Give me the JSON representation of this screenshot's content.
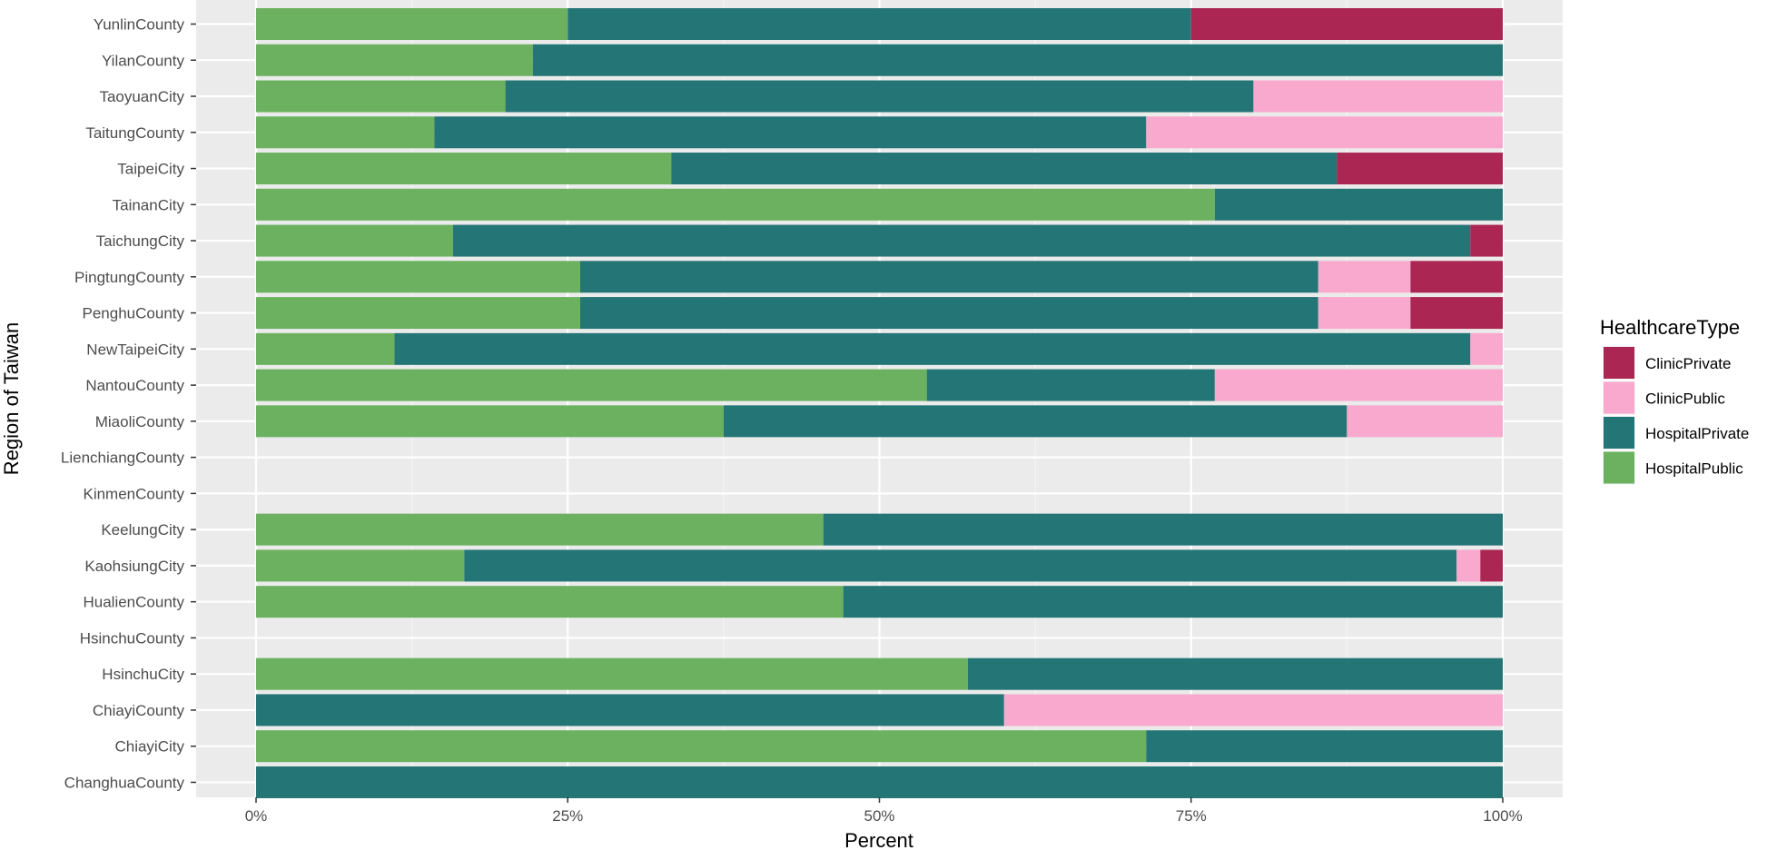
{
  "chart_data": {
    "type": "bar",
    "orientation": "horizontal",
    "stacked": true,
    "stack_order": [
      "HospitalPublic",
      "HospitalPrivate",
      "ClinicPublic",
      "ClinicPrivate"
    ],
    "xlabel": "Percent",
    "ylabel": "Region of Taiwan",
    "xlim": [
      0,
      1
    ],
    "x_ticks": [
      0,
      0.25,
      0.5,
      0.75,
      1
    ],
    "x_tick_labels": [
      "0%",
      "25%",
      "50%",
      "75%",
      "100%"
    ],
    "grid": true,
    "legend": {
      "title": "HealthcareType",
      "position": "right",
      "entries": [
        "ClinicPrivate",
        "ClinicPublic",
        "HospitalPrivate",
        "HospitalPublic"
      ]
    },
    "colors": {
      "ClinicPrivate": "#ab2652",
      "ClinicPublic": "#f9a9ce",
      "HospitalPrivate": "#247576",
      "HospitalPublic": "#6bb160"
    },
    "categories": [
      "YunlinCounty",
      "YilanCounty",
      "TaoyuanCity",
      "TaitungCounty",
      "TaipeiCity",
      "TainanCity",
      "TaichungCity",
      "PingtungCounty",
      "PenghuCounty",
      "NewTaipeiCity",
      "NantouCounty",
      "MiaoliCounty",
      "LienchiangCounty",
      "KinmenCounty",
      "KeelungCity",
      "KaohsiungCity",
      "HualienCounty",
      "HsinchuCounty",
      "HsinchuCity",
      "ChiayiCounty",
      "ChiayiCity",
      "ChanghuaCounty"
    ],
    "series": [
      {
        "name": "HospitalPublic",
        "values": [
          0.25,
          0.222,
          0.2,
          0.143,
          0.333,
          0.769,
          0.158,
          0.26,
          0.26,
          0.111,
          0.538,
          0.375,
          0,
          0,
          0.455,
          0.167,
          0.471,
          0,
          0.571,
          0,
          0.714,
          0
        ]
      },
      {
        "name": "HospitalPrivate",
        "values": [
          0.5,
          0.778,
          0.6,
          0.571,
          0.534,
          0.231,
          0.816,
          0.592,
          0.592,
          0.863,
          0.231,
          0.5,
          0,
          0,
          0.545,
          0.796,
          0.529,
          0,
          0.429,
          0.6,
          0.286,
          1
        ]
      },
      {
        "name": "ClinicPublic",
        "values": [
          0,
          0,
          0.2,
          0.286,
          0,
          0,
          0,
          0.074,
          0.074,
          0.026,
          0.231,
          0.125,
          0,
          0,
          0,
          0.019,
          0,
          0,
          0,
          0.4,
          0,
          0
        ]
      },
      {
        "name": "ClinicPrivate",
        "values": [
          0.25,
          0,
          0,
          0,
          0.133,
          0,
          0.026,
          0.074,
          0.074,
          0,
          0,
          0,
          0,
          0,
          0,
          0.018,
          0,
          0,
          0,
          0,
          0,
          0
        ]
      }
    ]
  }
}
